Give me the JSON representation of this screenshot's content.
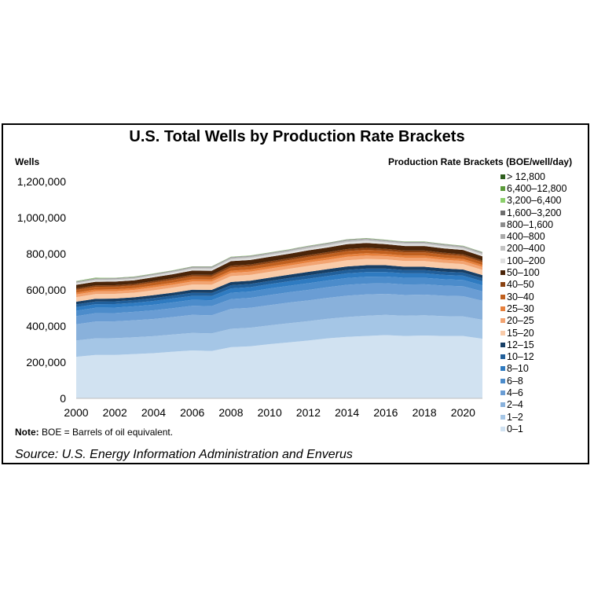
{
  "chart_data": {
    "type": "area",
    "stacked": true,
    "title": "U.S. Total Wells by Production Rate Brackets",
    "ylabel": "Wells",
    "xlabel": "",
    "legend_title": "Production Rate Brackets (BOE/well/day)",
    "legend_position": "right",
    "ylim": [
      0,
      1200000
    ],
    "xlim": [
      2000,
      2021
    ],
    "y_ticks": [
      "0",
      "200,000",
      "400,000",
      "600,000",
      "800,000",
      "1,000,000",
      "1,200,000"
    ],
    "x_ticks": [
      "2000",
      "2002",
      "2004",
      "2006",
      "2008",
      "2010",
      "2012",
      "2014",
      "2016",
      "2018",
      "2020"
    ],
    "x": [
      2000,
      2001,
      2002,
      2003,
      2004,
      2005,
      2006,
      2007,
      2008,
      2009,
      2010,
      2011,
      2012,
      2013,
      2014,
      2015,
      2016,
      2017,
      2018,
      2019,
      2020,
      2021
    ],
    "series": [
      {
        "name": "0–1",
        "color": "#d1e2f1",
        "values": [
          230000,
          240000,
          240000,
          245000,
          250000,
          258000,
          265000,
          262000,
          283000,
          288000,
          300000,
          310000,
          320000,
          332000,
          340000,
          345000,
          350000,
          345000,
          348000,
          345000,
          345000,
          330000
        ]
      },
      {
        "name": "1–2",
        "color": "#a5c6e6",
        "values": [
          90000,
          92000,
          93000,
          93000,
          94000,
          95000,
          97000,
          97000,
          102000,
          103000,
          104000,
          106000,
          107000,
          108000,
          110000,
          112000,
          112000,
          112000,
          112000,
          110000,
          108000,
          105000
        ]
      },
      {
        "name": "2–4",
        "color": "#89b1db",
        "values": [
          90000,
          93000,
          93000,
          94000,
          95000,
          97000,
          100000,
          100000,
          110000,
          110000,
          112000,
          114000,
          115000,
          116000,
          118000,
          118000,
          116000,
          115000,
          114000,
          113000,
          112000,
          105000
        ]
      },
      {
        "name": "4–6",
        "color": "#6a9dd4",
        "values": [
          45000,
          46000,
          46000,
          47000,
          48000,
          49000,
          50000,
          51000,
          54000,
          55000,
          56000,
          57000,
          58000,
          59000,
          60000,
          60000,
          59000,
          58000,
          57000,
          56000,
          55000,
          52000
        ]
      },
      {
        "name": "6–8",
        "color": "#4c8ccb",
        "values": [
          30000,
          30000,
          30000,
          30000,
          31000,
          32000,
          33000,
          33000,
          35000,
          35000,
          36000,
          36000,
          37000,
          37000,
          38000,
          38000,
          37000,
          37000,
          36000,
          35000,
          35000,
          33000
        ]
      },
      {
        "name": "8–10",
        "color": "#2f7bc1",
        "values": [
          20000,
          20000,
          20000,
          20000,
          21000,
          22000,
          22000,
          23000,
          24000,
          24000,
          24000,
          25000,
          25000,
          25000,
          26000,
          26000,
          25000,
          25000,
          25000,
          24000,
          24000,
          23000
        ]
      },
      {
        "name": "10–12",
        "color": "#215f9a",
        "values": [
          15000,
          15000,
          15000,
          15000,
          16000,
          16000,
          17000,
          17000,
          18000,
          18000,
          18000,
          18000,
          19000,
          19000,
          19000,
          19000,
          19000,
          18000,
          18000,
          18000,
          17000,
          17000
        ]
      },
      {
        "name": "12–15",
        "color": "#173f66",
        "values": [
          15000,
          15000,
          15000,
          15000,
          16000,
          16000,
          17000,
          17000,
          18000,
          18000,
          18000,
          18000,
          19000,
          19000,
          19000,
          19000,
          19000,
          18000,
          18000,
          18000,
          17000,
          17000
        ]
      },
      {
        "name": "15–20",
        "color": "#f9cba9",
        "values": [
          25000,
          26000,
          26000,
          26000,
          27000,
          28000,
          29000,
          29000,
          32000,
          32000,
          32000,
          33000,
          33000,
          33000,
          34000,
          34000,
          32000,
          32000,
          32000,
          31000,
          30000,
          29000
        ]
      },
      {
        "name": "20–25",
        "color": "#f2a472",
        "values": [
          15000,
          15000,
          15000,
          15000,
          16000,
          16000,
          17000,
          17000,
          18000,
          18000,
          18000,
          18000,
          19000,
          19000,
          19000,
          19000,
          18000,
          18000,
          18000,
          17000,
          17000,
          16000
        ]
      },
      {
        "name": "25–30",
        "color": "#e7813d",
        "values": [
          10000,
          10000,
          10000,
          10000,
          11000,
          11000,
          11000,
          11000,
          12000,
          12000,
          12000,
          12000,
          12000,
          13000,
          13000,
          13000,
          12000,
          12000,
          12000,
          12000,
          11000,
          11000
        ]
      },
      {
        "name": "30–40",
        "color": "#c0601f",
        "values": [
          15000,
          15000,
          15000,
          15000,
          16000,
          16000,
          17000,
          17000,
          18000,
          18000,
          18000,
          18000,
          19000,
          19000,
          19000,
          19000,
          18000,
          18000,
          18000,
          17000,
          17000,
          16000
        ]
      },
      {
        "name": "40–50",
        "color": "#8a4212",
        "values": [
          8000,
          8000,
          8000,
          8000,
          8000,
          9000,
          9000,
          9000,
          10000,
          10000,
          10000,
          10000,
          10000,
          10000,
          11000,
          11000,
          10000,
          10000,
          10000,
          10000,
          9000,
          9000
        ]
      },
      {
        "name": "50–100",
        "color": "#4b2509",
        "values": [
          20000,
          20000,
          20000,
          20000,
          21000,
          22000,
          23000,
          23000,
          25000,
          25000,
          25000,
          25000,
          26000,
          26000,
          27000,
          27000,
          26000,
          25000,
          25000,
          24000,
          24000,
          23000
        ]
      },
      {
        "name": "100–200",
        "color": "#e0e0e0",
        "values": [
          8000,
          8000,
          8000,
          8000,
          8000,
          9000,
          9000,
          9000,
          10000,
          10000,
          10000,
          10000,
          10000,
          10000,
          11000,
          11000,
          10000,
          10000,
          10000,
          10000,
          9000,
          9000
        ]
      },
      {
        "name": "200–400",
        "color": "#c3c3c3",
        "values": [
          5000,
          5000,
          5000,
          5000,
          5000,
          5000,
          6000,
          6000,
          6000,
          6000,
          6000,
          6000,
          7000,
          7000,
          7000,
          7000,
          6000,
          6000,
          6000,
          6000,
          6000,
          6000
        ]
      },
      {
        "name": "400–800",
        "color": "#a9a9a9",
        "values": [
          3000,
          3000,
          3000,
          3000,
          3000,
          3000,
          3000,
          4000,
          4000,
          4000,
          4000,
          4000,
          4000,
          4000,
          4000,
          4000,
          4000,
          4000,
          4000,
          4000,
          4000,
          4000
        ]
      },
      {
        "name": "800–1,600",
        "color": "#8c8c8c",
        "values": [
          2000,
          2000,
          2000,
          2000,
          2000,
          2000,
          2000,
          2000,
          2000,
          2000,
          2000,
          2000,
          2000,
          2000,
          2000,
          2000,
          2000,
          2000,
          2000,
          2000,
          2000,
          2000
        ]
      },
      {
        "name": "1,600–3,200",
        "color": "#6e6e6e",
        "values": [
          1000,
          1000,
          1000,
          1000,
          1000,
          1000,
          1000,
          1000,
          1000,
          1000,
          1000,
          1000,
          1000,
          1000,
          1000,
          1000,
          1000,
          1000,
          1000,
          1000,
          1000,
          1000
        ]
      },
      {
        "name": "3,200–6,400",
        "color": "#8ccf6b",
        "values": [
          1000,
          3000,
          1000,
          1000,
          1000,
          1000,
          1000,
          1000,
          1000,
          1000,
          1000,
          1000,
          1000,
          1000,
          1000,
          1000,
          1000,
          1000,
          1000,
          1000,
          1000,
          1000
        ]
      },
      {
        "name": "6,400–12,800",
        "color": "#5b9a3a",
        "values": [
          500,
          500,
          500,
          500,
          500,
          500,
          500,
          500,
          500,
          500,
          500,
          500,
          500,
          500,
          500,
          500,
          500,
          500,
          500,
          500,
          500,
          500
        ]
      },
      {
        "name": "> 12,800",
        "color": "#2f5e1e",
        "values": [
          200,
          200,
          200,
          200,
          200,
          200,
          200,
          200,
          200,
          200,
          200,
          200,
          200,
          200,
          200,
          200,
          200,
          200,
          200,
          200,
          200,
          200
        ]
      }
    ]
  },
  "note": {
    "label": "Note:",
    "text": " BOE = Barrels of oil equivalent."
  },
  "source": "Source: U.S. Energy Information Administration and Enverus"
}
